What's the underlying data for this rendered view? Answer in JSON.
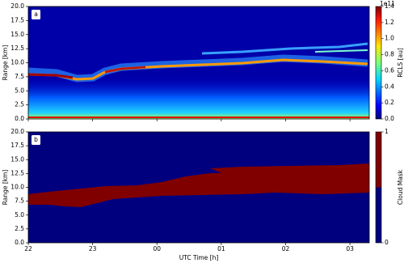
{
  "chart_data": [
    {
      "type": "heatmap",
      "panel_label": "a",
      "ylabel": "Range [km]",
      "ylim": [
        0,
        20
      ],
      "yticks": [
        {
          "value": 0,
          "label": "0.0"
        },
        2.5,
        {
          "value": 5,
          "label": "5.0"
        },
        7.5,
        {
          "value": 10,
          "label": "10.0"
        },
        12.5,
        {
          "value": 15,
          "label": "15.0"
        },
        17.5,
        {
          "value": 20,
          "label": "20.0"
        }
      ],
      "xlim": [
        22,
        27.3
      ],
      "colorbar": {
        "label": "RCLS [au]",
        "offset_text": "1e11",
        "lim": [
          0,
          1.4
        ],
        "ticks": [
          {
            "value": 0,
            "label": "0.0"
          },
          0.2,
          0.4,
          0.6,
          0.8,
          {
            "value": 1,
            "label": "1.0"
          },
          1.2,
          1.4
        ]
      }
    },
    {
      "type": "heatmap",
      "panel_label": "b",
      "ylabel": "Range [km]",
      "xlabel": "UTC Time [h]",
      "ylim": [
        0,
        20
      ],
      "yticks": [
        {
          "value": 0,
          "label": "0.0"
        },
        2.5,
        {
          "value": 5,
          "label": "5.0"
        },
        7.5,
        {
          "value": 10,
          "label": "10.0"
        },
        12.5,
        {
          "value": 15,
          "label": "15.0"
        },
        17.5,
        {
          "value": 20,
          "label": "20.0"
        }
      ],
      "xlim": [
        22,
        27.3
      ],
      "xticks": [
        22,
        23,
        {
          "value": 24,
          "label": "00"
        },
        {
          "value": 25,
          "label": "01"
        },
        {
          "value": 26,
          "label": "02"
        },
        {
          "value": 27,
          "label": "03"
        }
      ],
      "colorbar": {
        "label": "Cloud Mask",
        "lim": [
          0,
          1
        ],
        "ticks": [
          0,
          1
        ]
      }
    }
  ]
}
